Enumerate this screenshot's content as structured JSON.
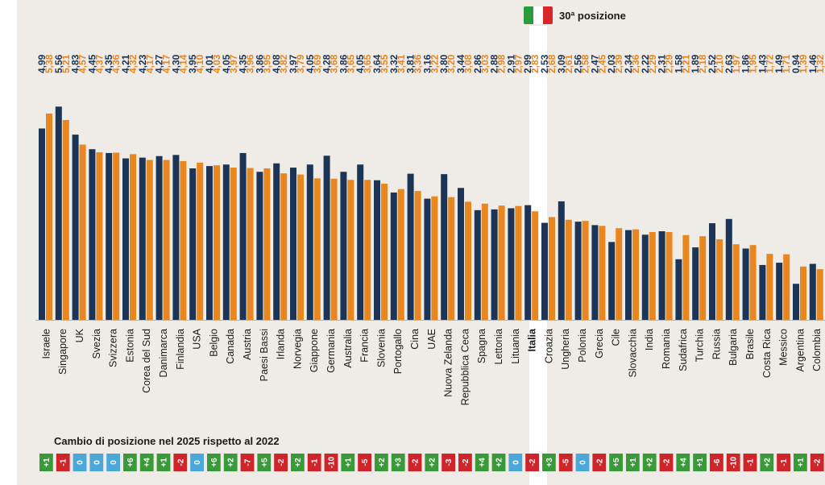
{
  "header": {
    "position_label": "30ª posizione",
    "flag_colors": [
      "#2a9a3a",
      "#ffffff",
      "#d8262b"
    ]
  },
  "change_section": {
    "title": "Cambio di posizione nel 2025 rispetto al 2022"
  },
  "colors": {
    "series_2022": "#1c3557",
    "series_2025": "#e8861f",
    "badge_up": "#3a9a3a",
    "badge_down": "#d0242b",
    "badge_same": "#4ba8d8"
  },
  "chart_data": {
    "type": "bar",
    "title": "",
    "xlabel": "",
    "ylabel": "",
    "ylim": [
      0,
      6
    ],
    "highlight": "Italia",
    "categories": [
      "Israele",
      "Singapore",
      "UK",
      "Svezia",
      "Svizzera",
      "Estonia",
      "Corea del Sud",
      "Danimarca",
      "Finlandia",
      "USA",
      "Belgio",
      "Canada",
      "Austria",
      "Paesi Bassi",
      "Irlanda",
      "Norvegia",
      "Giappone",
      "Germania",
      "Australia",
      "Francia",
      "Slovenia",
      "Portogallo",
      "Cina",
      "UAE",
      "Nuova Zelanda",
      "Repubblica Ceca",
      "Spagna",
      "Lettonia",
      "Lituania",
      "Italia",
      "Croazia",
      "Ungheria",
      "Polonia",
      "Grecia",
      "Cile",
      "Slovacchia",
      "India",
      "Romania",
      "Sudafrica",
      "Turchia",
      "Russia",
      "Bulgaria",
      "Brasile",
      "Costa Rica",
      "Messico",
      "Argentina",
      "Colombia"
    ],
    "series": [
      {
        "name": "2022",
        "color": "#1c3557",
        "values": [
          4.99,
          5.56,
          4.83,
          4.45,
          4.35,
          4.21,
          4.23,
          4.27,
          4.3,
          3.95,
          4.01,
          4.05,
          4.35,
          3.86,
          4.08,
          3.97,
          4.05,
          4.28,
          3.86,
          4.05,
          3.64,
          3.32,
          3.81,
          3.16,
          3.8,
          3.44,
          2.86,
          2.88,
          2.91,
          2.99,
          2.53,
          3.09,
          2.56,
          2.47,
          2.03,
          2.34,
          2.22,
          2.31,
          1.58,
          1.89,
          2.52,
          2.63,
          1.86,
          1.43,
          1.49,
          0.94,
          1.46
        ],
        "labels": [
          "4,99",
          "5,56",
          "4,83",
          "4,45",
          "4,35",
          "4,21",
          "4,23",
          "4,27",
          "4,30",
          "3,95",
          "4,01",
          "4,05",
          "4,35",
          "3,86",
          "4,08",
          "3,97",
          "4,05",
          "4,28",
          "3,86",
          "4,05",
          "3,64",
          "3,32",
          "3,81",
          "3,16",
          "3,80",
          "3,44",
          "2,86",
          "2,88",
          "2,91",
          "2,99",
          "2,53",
          "3,09",
          "2,56",
          "2,47",
          "2,03",
          "2,34",
          "2,22",
          "2,31",
          "1,58",
          "1,89",
          "2,52",
          "2,63",
          "1,86",
          "1,43",
          "1,49",
          "0,94",
          "1,46"
        ]
      },
      {
        "name": "2025",
        "color": "#e8861f",
        "values": [
          5.38,
          5.21,
          4.57,
          4.37,
          4.36,
          4.32,
          4.17,
          4.17,
          4.14,
          4.1,
          4.03,
          3.97,
          3.96,
          3.95,
          3.82,
          3.79,
          3.69,
          3.68,
          3.65,
          3.65,
          3.55,
          3.41,
          3.36,
          3.22,
          3.2,
          3.08,
          3.03,
          2.98,
          2.97,
          2.83,
          2.68,
          2.61,
          2.58,
          2.45,
          2.39,
          2.36,
          2.29,
          2.29,
          2.21,
          2.18,
          2.1,
          1.97,
          1.95,
          1.72,
          1.71,
          1.39,
          1.32
        ],
        "labels": [
          "5,38",
          "5,21",
          "4,57",
          "4,37",
          "4,36",
          "4,32",
          "4,17",
          "4,17",
          "4,14",
          "4,10",
          "4,03",
          "3,97",
          "3,96",
          "3,95",
          "3,82",
          "3,79",
          "3,69",
          "3,68",
          "3,65",
          "3,65",
          "3,55",
          "3,41",
          "3,36",
          "3,22",
          "3,20",
          "3,08",
          "3,03",
          "2,98",
          "2,97",
          "2,83",
          "2,68",
          "2,61",
          "2,58",
          "2,45",
          "2,39",
          "2,36",
          "2,29",
          "2,29",
          "2,21",
          "2,18",
          "2,10",
          "1,97",
          "1,95",
          "1,72",
          "1,71",
          "1,39",
          "1,32"
        ]
      }
    ],
    "position_change": {
      "title": "Cambio di posizione nel 2025 rispetto al 2022",
      "labels": [
        "+1",
        "-1",
        "0",
        "0",
        "0",
        "+6",
        "+4",
        "+1",
        "-2",
        "0",
        "+6",
        "+2",
        "-7",
        "+5",
        "-2",
        "+2",
        "-1",
        "-10",
        "+1",
        "-5",
        "+2",
        "+3",
        "-2",
        "+2",
        "-3",
        "-2",
        "+4",
        "+2",
        "0",
        "-2",
        "+3",
        "-5",
        "0",
        "-2",
        "+5",
        "+1",
        "+2",
        "-2",
        "+4",
        "+1",
        "-6",
        "-10",
        "-1",
        "+2",
        "-1",
        "+1",
        "-2"
      ],
      "values": [
        1,
        -1,
        0,
        0,
        0,
        6,
        4,
        1,
        -2,
        0,
        6,
        2,
        -7,
        5,
        -2,
        2,
        -1,
        -10,
        1,
        -5,
        2,
        3,
        -2,
        2,
        -3,
        -2,
        4,
        2,
        0,
        -2,
        3,
        -5,
        0,
        -2,
        5,
        1,
        2,
        -2,
        4,
        1,
        -6,
        -10,
        -1,
        2,
        -1,
        1,
        -2
      ]
    }
  }
}
